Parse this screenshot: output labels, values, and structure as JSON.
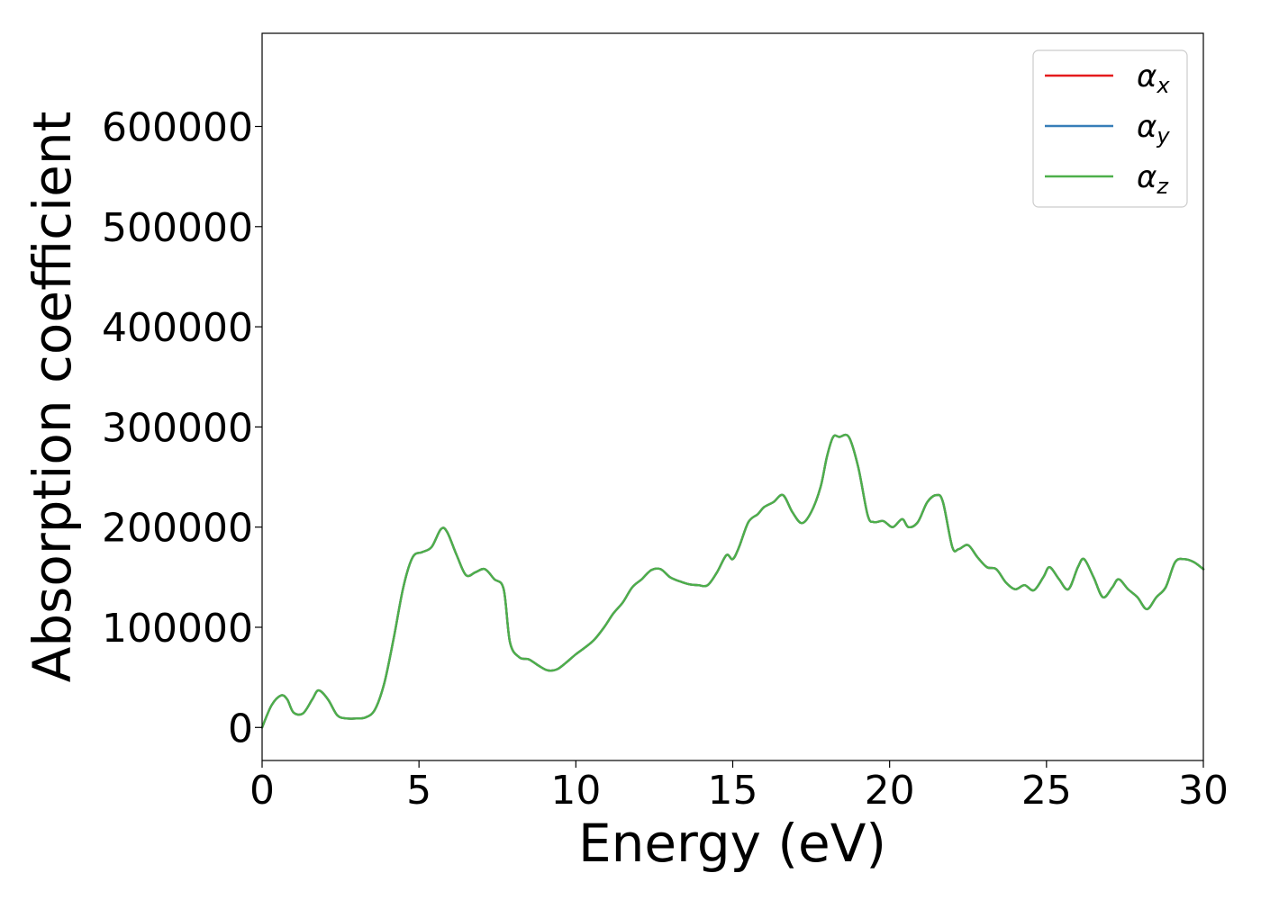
{
  "chart_data": {
    "type": "line",
    "title": "",
    "xlabel": "Energy (eV)",
    "ylabel": "Absorption coefficient",
    "xlim": [
      0,
      30
    ],
    "ylim": [
      -33000,
      693000
    ],
    "xticks": [
      0,
      5,
      10,
      15,
      20,
      25,
      30
    ],
    "yticks": [
      0,
      100000,
      200000,
      300000,
      400000,
      500000,
      600000
    ],
    "grid": false,
    "legend_position": "top-right",
    "x": [
      0,
      0.3,
      0.6,
      0.8,
      1.0,
      1.3,
      1.6,
      1.8,
      2.1,
      2.4,
      2.7,
      3.0,
      3.3,
      3.6,
      3.9,
      4.2,
      4.5,
      4.8,
      5.1,
      5.4,
      5.7,
      5.9,
      6.2,
      6.5,
      6.8,
      7.1,
      7.4,
      7.7,
      7.9,
      8.2,
      8.5,
      8.8,
      9.1,
      9.4,
      9.7,
      10.0,
      10.3,
      10.6,
      10.9,
      11.2,
      11.5,
      11.8,
      12.1,
      12.4,
      12.7,
      13.0,
      13.3,
      13.6,
      13.9,
      14.2,
      14.5,
      14.8,
      15.0,
      15.2,
      15.5,
      15.8,
      16.0,
      16.3,
      16.6,
      16.9,
      17.2,
      17.5,
      17.8,
      18.0,
      18.2,
      18.4,
      18.7,
      19.0,
      19.3,
      19.5,
      19.8,
      20.1,
      20.4,
      20.6,
      20.9,
      21.2,
      21.5,
      21.7,
      22.0,
      22.2,
      22.5,
      22.8,
      23.1,
      23.4,
      23.7,
      24.0,
      24.3,
      24.6,
      24.9,
      25.1,
      25.4,
      25.7,
      26.0,
      26.2,
      26.5,
      26.8,
      27.1,
      27.3,
      27.6,
      27.9,
      28.2,
      28.5,
      28.8,
      29.1,
      29.4,
      29.7,
      30.0
    ],
    "series": [
      {
        "name": "αx",
        "color": "#e41a1c",
        "values": [
          0,
          22000,
          32000,
          28000,
          15000,
          14000,
          28000,
          37000,
          28000,
          12000,
          9000,
          9000,
          10000,
          18000,
          45000,
          90000,
          140000,
          170000,
          175000,
          180000,
          198000,
          195000,
          172000,
          152000,
          155000,
          158000,
          148000,
          138000,
          85000,
          70000,
          68000,
          62000,
          57000,
          58000,
          65000,
          73000,
          80000,
          88000,
          100000,
          114000,
          125000,
          140000,
          148000,
          157000,
          158000,
          150000,
          146000,
          143000,
          142000,
          142000,
          155000,
          172000,
          168000,
          180000,
          205000,
          213000,
          220000,
          225000,
          232000,
          215000,
          204000,
          215000,
          240000,
          270000,
          290000,
          290000,
          290000,
          260000,
          212000,
          205000,
          206000,
          200000,
          208000,
          200000,
          205000,
          225000,
          232000,
          225000,
          180000,
          178000,
          182000,
          170000,
          160000,
          158000,
          145000,
          138000,
          142000,
          137000,
          150000,
          160000,
          148000,
          138000,
          160000,
          168000,
          150000,
          130000,
          140000,
          148000,
          138000,
          130000,
          118000,
          130000,
          140000,
          165000,
          168000,
          165000,
          158000
        ]
      },
      {
        "name": "αy",
        "color": "#377eb8",
        "values": [
          0,
          22000,
          32000,
          28000,
          15000,
          14000,
          28000,
          37000,
          28000,
          12000,
          9000,
          9000,
          10000,
          18000,
          45000,
          90000,
          140000,
          170000,
          175000,
          180000,
          198000,
          195000,
          172000,
          152000,
          155000,
          158000,
          148000,
          138000,
          85000,
          70000,
          68000,
          62000,
          57000,
          58000,
          65000,
          73000,
          80000,
          88000,
          100000,
          114000,
          125000,
          140000,
          148000,
          157000,
          158000,
          150000,
          146000,
          143000,
          142000,
          142000,
          155000,
          172000,
          168000,
          180000,
          205000,
          213000,
          220000,
          225000,
          232000,
          215000,
          204000,
          215000,
          240000,
          270000,
          290000,
          290000,
          290000,
          260000,
          212000,
          205000,
          206000,
          200000,
          208000,
          200000,
          205000,
          225000,
          232000,
          225000,
          180000,
          178000,
          182000,
          170000,
          160000,
          158000,
          145000,
          138000,
          142000,
          137000,
          150000,
          160000,
          148000,
          138000,
          160000,
          168000,
          150000,
          130000,
          140000,
          148000,
          138000,
          130000,
          118000,
          130000,
          140000,
          165000,
          168000,
          165000,
          158000
        ]
      },
      {
        "name": "αz",
        "color": "#4daf4a",
        "values": [
          0,
          22000,
          32000,
          28000,
          15000,
          14000,
          28000,
          37000,
          28000,
          12000,
          9000,
          9000,
          10000,
          18000,
          45000,
          90000,
          140000,
          170000,
          175000,
          180000,
          198000,
          195000,
          172000,
          152000,
          155000,
          158000,
          148000,
          138000,
          85000,
          70000,
          68000,
          62000,
          57000,
          58000,
          65000,
          73000,
          80000,
          88000,
          100000,
          114000,
          125000,
          140000,
          148000,
          157000,
          158000,
          150000,
          146000,
          143000,
          142000,
          142000,
          155000,
          172000,
          168000,
          180000,
          205000,
          213000,
          220000,
          225000,
          232000,
          215000,
          204000,
          215000,
          240000,
          270000,
          290000,
          290000,
          290000,
          260000,
          212000,
          205000,
          206000,
          200000,
          208000,
          200000,
          205000,
          225000,
          232000,
          225000,
          180000,
          178000,
          182000,
          170000,
          160000,
          158000,
          145000,
          138000,
          142000,
          137000,
          150000,
          160000,
          148000,
          138000,
          160000,
          168000,
          150000,
          130000,
          140000,
          148000,
          138000,
          130000,
          118000,
          130000,
          140000,
          165000,
          168000,
          165000,
          158000
        ]
      }
    ]
  }
}
